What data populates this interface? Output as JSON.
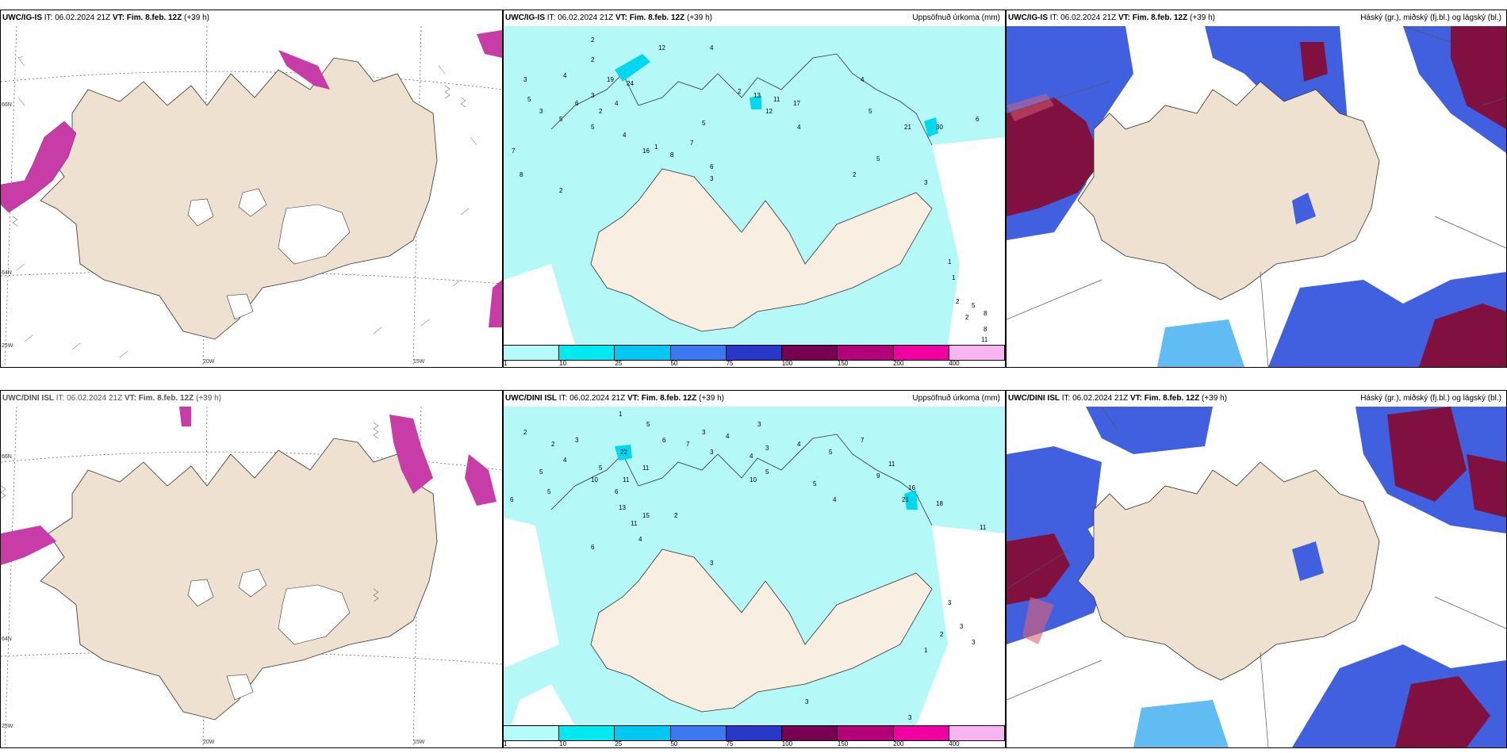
{
  "panels": [
    {
      "id": "tl",
      "header_model": "UWC/IG-IS",
      "header_it": "IT: 06.02.2024 21Z",
      "header_vt_label": "VT:",
      "header_vt": "Fim. 8.feb. 12Z",
      "header_lead": "(+39 h)",
      "header_right": "",
      "axis_labels": [
        "66N",
        "64N",
        "25W",
        "20W",
        "15W"
      ]
    },
    {
      "id": "tm",
      "header_model": "UWC/IG-IS",
      "header_it": "IT: 06.02.2024 21Z",
      "header_vt_label": "VT:",
      "header_vt": "Fim. 8.feb. 12Z",
      "header_lead": "(+39 h)",
      "header_right": "Uppsöfnuð úrkoma (mm)"
    },
    {
      "id": "tr",
      "header_model": "UWC/IG-IS",
      "header_it": "IT: 06.02.2024 21Z",
      "header_vt_label": "VT:",
      "header_vt": "Fim. 8.feb. 12Z",
      "header_lead": "(+39 h)",
      "header_right": "Háský (gr.), miðský (fj.bl.) og lágský (bl.)"
    },
    {
      "id": "bl",
      "header_model": "UWC/DINI ISL",
      "header_it": "IT: 06.02.2024 21Z",
      "header_vt_label": "VT:",
      "header_vt": "Fim. 8.feb. 12Z",
      "header_lead": "(+39 h)",
      "header_right": "",
      "axis_labels": [
        "66N",
        "64N",
        "25W",
        "20W",
        "15W"
      ]
    },
    {
      "id": "bm",
      "header_model": "UWC/DINI ISL",
      "header_it": "IT: 06.02.2024 21Z",
      "header_vt_label": "VT:",
      "header_vt": "Fim. 8.feb. 12Z",
      "header_lead": "(+39 h)",
      "header_right": "Uppsöfnuð úrkoma (mm)"
    },
    {
      "id": "br",
      "header_model": "UWC/DINI ISL",
      "header_it": "IT: 06.02.2024 21Z",
      "header_vt_label": "VT:",
      "header_vt": "Fim. 8.feb. 12Z",
      "header_lead": "(+39 h)",
      "header_right": "Háský (gr.), miðský (fj.bl.) og lágský (bl.)"
    }
  ],
  "precip_colorbar": {
    "labels": [
      "1",
      "10",
      "25",
      "50",
      "75",
      "100",
      "150",
      "200",
      "400"
    ],
    "colors": [
      "#b4fcfc",
      "#00e8f0",
      "#00c8f0",
      "#3c78f0",
      "#2838c8",
      "#780050",
      "#b40078",
      "#f000a0",
      "#f8b4f0"
    ]
  },
  "colors": {
    "land": "#eee1cf",
    "land_light": "#f8eee2",
    "precip_light": "#b4f8f8",
    "precip_mid": "#00d8f0",
    "cloud_high": "#c83ca8",
    "cloud_blue": "#4060e0",
    "cloud_light": "#20a0f0",
    "cloud_dark": "#801040",
    "cloud_red": "#e06070"
  },
  "precip_values_top": [
    "2",
    "12",
    "4",
    "3",
    "5",
    "4",
    "2",
    "3",
    "5",
    "6",
    "4",
    "2",
    "4",
    "3",
    "19",
    "24",
    "5",
    "16",
    "8",
    "7",
    "5",
    "6",
    "17",
    "2",
    "13",
    "11",
    "12",
    "21",
    "30",
    "4",
    "7",
    "1",
    "2",
    "3",
    "5",
    "4",
    "5",
    "2",
    "8",
    "3",
    "6",
    "1",
    "1",
    "2",
    "2",
    "5",
    "8",
    "8",
    "11"
  ],
  "precip_values_bottom": [
    "1",
    "2",
    "2",
    "5",
    "4",
    "3",
    "5",
    "6",
    "7",
    "3",
    "4",
    "3",
    "22",
    "11",
    "5",
    "10",
    "11",
    "6",
    "6",
    "5",
    "13",
    "15",
    "11",
    "4",
    "3",
    "2",
    "6",
    "3",
    "4",
    "3",
    "4",
    "5",
    "7",
    "5",
    "10",
    "11",
    "9",
    "16",
    "21",
    "18",
    "11",
    "5",
    "4",
    "3",
    "3",
    "3",
    "2",
    "1",
    "3",
    "3"
  ]
}
